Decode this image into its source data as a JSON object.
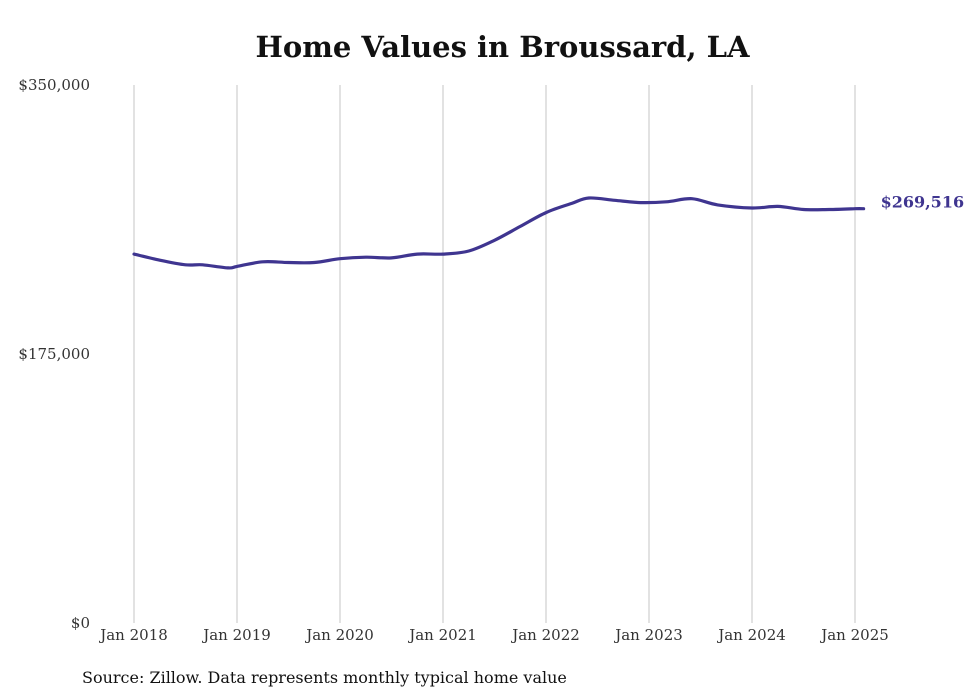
{
  "chart_data": {
    "type": "line",
    "title": "Home Values in Broussard, LA",
    "xlabel": "",
    "ylabel": "",
    "y_ticks": [
      "$0",
      "$175,000",
      "$350,000"
    ],
    "x_ticks": [
      "Jan 2018",
      "Jan 2019",
      "Jan 2020",
      "Jan 2021",
      "Jan 2022",
      "Jan 2023",
      "Jan 2024",
      "Jan 2025"
    ],
    "ylim": [
      0,
      350000
    ],
    "grid": "vertical",
    "line_color": "#3f3590",
    "series": [
      {
        "x": [
          "2018-01",
          "2018-04",
          "2018-07",
          "2018-09",
          "2018-12",
          "2019-01",
          "2019-04",
          "2019-07",
          "2019-10",
          "2020-01",
          "2020-04",
          "2020-07",
          "2020-10",
          "2021-01",
          "2021-04",
          "2021-07",
          "2021-10",
          "2022-01",
          "2022-04",
          "2022-06",
          "2022-09",
          "2022-12",
          "2023-03",
          "2023-06",
          "2023-09",
          "2024-01",
          "2024-04",
          "2024-07",
          "2024-10",
          "2025-01",
          "2025-02"
        ],
        "y": [
          240000,
          236000,
          233000,
          233000,
          231000,
          232000,
          235000,
          234500,
          234500,
          237000,
          238000,
          237500,
          240000,
          240000,
          242000,
          249000,
          258000,
          267000,
          273000,
          276500,
          275000,
          273500,
          274000,
          276000,
          272000,
          270000,
          271000,
          269000,
          269000,
          269500,
          269516
        ]
      }
    ],
    "end_label": "$269,516"
  },
  "source": "Source: Zillow. Data represents monthly typical home value"
}
